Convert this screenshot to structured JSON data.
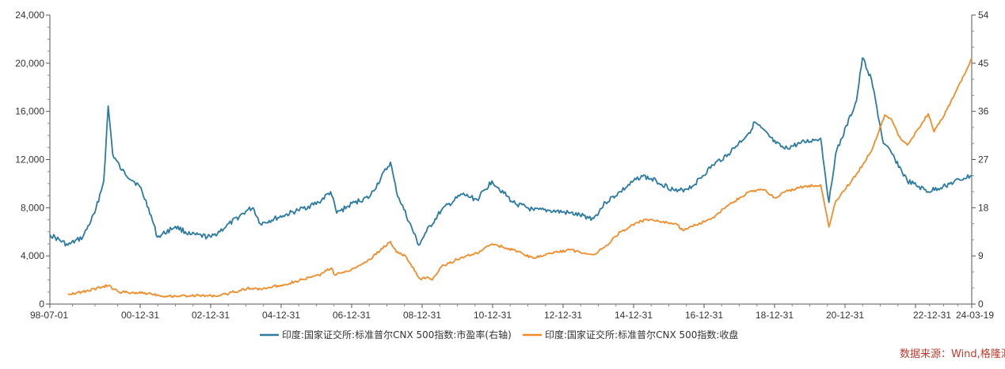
{
  "chart_data": {
    "type": "line",
    "x_tick_labels": [
      "98-07-01",
      "00-12-31",
      "02-12-31",
      "04-12-31",
      "06-12-31",
      "08-12-31",
      "10-12-31",
      "12-12-31",
      "14-12-31",
      "16-12-31",
      "18-12-31",
      "20-12-31",
      "22-12-31",
      "24-03-19"
    ],
    "left_axis": {
      "ticks": [
        "0",
        "4,000",
        "8,000",
        "12,000",
        "16,000",
        "20,000",
        "24,000"
      ],
      "ylim": [
        0,
        24000
      ]
    },
    "right_axis": {
      "ticks": [
        "0",
        "9",
        "18",
        "27",
        "36",
        "45",
        "54"
      ],
      "ylim": [
        0,
        54
      ]
    },
    "grid": false,
    "legend_position": "bottom",
    "series": [
      {
        "name": "印度:国家证交所:标准普尔CNX 500指数:市盈率(右轴)",
        "axis": "right",
        "color": "#2a7aa1",
        "x": [
          "1998-07-01",
          "1999-01-01",
          "1999-06-01",
          "1999-10-01",
          "2000-01-01",
          "2000-02-15",
          "2000-04-01",
          "2000-07-01",
          "2000-12-31",
          "2001-04-01",
          "2001-07-01",
          "2001-12-31",
          "2002-06-01",
          "2002-12-31",
          "2003-06-01",
          "2003-12-31",
          "2004-03-01",
          "2004-05-15",
          "2004-12-31",
          "2005-06-01",
          "2005-12-31",
          "2006-05-01",
          "2006-07-01",
          "2006-12-31",
          "2007-06-01",
          "2007-12-31",
          "2008-03-01",
          "2008-10-15",
          "2008-12-31",
          "2009-06-01",
          "2009-12-31",
          "2010-06-01",
          "2010-10-31",
          "2011-06-01",
          "2011-12-31",
          "2012-06-01",
          "2012-12-31",
          "2013-08-31",
          "2013-12-31",
          "2014-06-01",
          "2014-12-31",
          "2015-06-01",
          "2015-12-31",
          "2016-06-01",
          "2016-12-31",
          "2017-06-01",
          "2017-12-31",
          "2018-03-01",
          "2018-10-01",
          "2018-12-31",
          "2019-06-01",
          "2019-12-31",
          "2020-03-25",
          "2020-06-01",
          "2020-12-31",
          "2021-03-01",
          "2021-06-01",
          "2021-10-01",
          "2021-12-31",
          "2022-06-01",
          "2022-12-31",
          "2023-06-01",
          "2023-12-31",
          "2024-03-19"
        ],
        "values": [
          13,
          11,
          12.5,
          17,
          23,
          37,
          28,
          25,
          22,
          18,
          12.5,
          14.5,
          13,
          12.5,
          14.5,
          17.5,
          18,
          15,
          16.5,
          17.5,
          19,
          21,
          17,
          19,
          20,
          26.5,
          21,
          11,
          13.5,
          17.5,
          20.5,
          19.5,
          23,
          19,
          17.5,
          17.5,
          17,
          16,
          19,
          21,
          24,
          23,
          21,
          22,
          26,
          28,
          32,
          34,
          30,
          29,
          30,
          31,
          19,
          28,
          38,
          46,
          42,
          30,
          28,
          23,
          21,
          22,
          23.5,
          24
        ]
      },
      {
        "name": "印度:国家证交所:标准普尔CNX 500指数:收盘",
        "axis": "left",
        "color": "#f28c28",
        "x": [
          "1999-01-01",
          "1999-06-01",
          "2000-02-15",
          "2000-06-01",
          "2001-04-01",
          "2001-09-21",
          "2002-06-01",
          "2002-12-31",
          "2003-04-01",
          "2003-12-31",
          "2004-05-15",
          "2004-12-31",
          "2005-12-31",
          "2006-05-10",
          "2006-06-14",
          "2006-12-31",
          "2007-06-01",
          "2007-12-31",
          "2008-03-01",
          "2008-06-01",
          "2008-10-27",
          "2008-12-31",
          "2009-03-01",
          "2009-06-01",
          "2009-12-31",
          "2010-06-01",
          "2010-10-31",
          "2011-06-01",
          "2011-12-31",
          "2012-06-01",
          "2012-12-31",
          "2013-08-31",
          "2013-12-31",
          "2014-06-01",
          "2014-12-31",
          "2015-03-01",
          "2015-12-31",
          "2016-02-29",
          "2016-12-31",
          "2017-06-01",
          "2017-12-31",
          "2018-06-01",
          "2018-10-01",
          "2018-12-31",
          "2019-06-01",
          "2019-12-31",
          "2020-03-25",
          "2020-06-01",
          "2020-12-31",
          "2021-06-01",
          "2021-10-15",
          "2021-12-31",
          "2022-03-01",
          "2022-06-01",
          "2022-12-31",
          "2023-03-01",
          "2023-06-01",
          "2023-12-31",
          "2024-03-19"
        ],
        "values": [
          850,
          1000,
          1550,
          1000,
          900,
          650,
          700,
          700,
          700,
          1300,
          1250,
          1600,
          2400,
          3000,
          2400,
          3000,
          3700,
          5200,
          4300,
          4000,
          2100,
          2200,
          2000,
          3100,
          3900,
          4200,
          5000,
          4500,
          3800,
          4200,
          4500,
          4100,
          4800,
          6000,
          6900,
          7000,
          6600,
          6100,
          7200,
          8200,
          9300,
          9500,
          8800,
          9300,
          9700,
          9900,
          6400,
          8500,
          10800,
          12700,
          15700,
          15200,
          14000,
          13200,
          15800,
          14300,
          15500,
          19000,
          20400
        ]
      }
    ]
  },
  "legend": {
    "pe_label": "印度:国家证交所:标准普尔CNX 500指数:市盈率(右轴)",
    "close_label": "印度:国家证交所:标准普尔CNX 500指数:收盘"
  },
  "source_text": "数据来源：Wind,格隆汇"
}
